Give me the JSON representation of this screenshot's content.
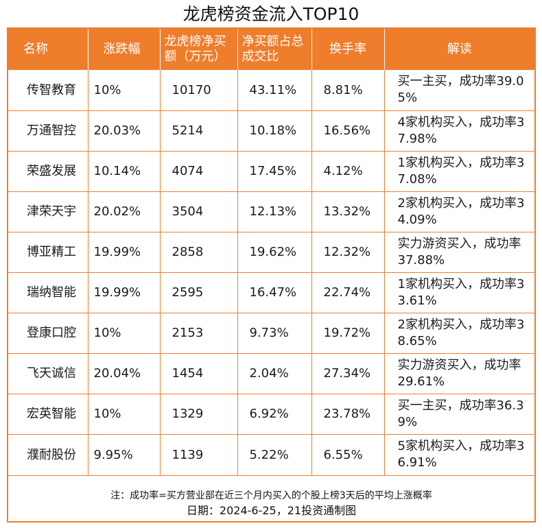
{
  "title": "龙虎榜资金流入TOP10",
  "columns": [
    "名称",
    "涨跌幅",
    "龙虎榜净买额（万元）",
    "净买额占总成交比",
    "换手率",
    "解读"
  ],
  "rows": [
    {
      "name": "传智教育",
      "change": "10%",
      "net_buy": "10170",
      "ratio": "43.11%",
      "turnover": "8.81%",
      "note": "买一主买，成功率39.05%"
    },
    {
      "name": "万通智控",
      "change": "20.03%",
      "net_buy": "5214",
      "ratio": "10.18%",
      "turnover": "16.56%",
      "note": "4家机构买入，成功率37.98%"
    },
    {
      "name": "荣盛发展",
      "change": "10.14%",
      "net_buy": "4074",
      "ratio": "17.45%",
      "turnover": "4.12%",
      "note": "1家机构买入，成功率37.08%"
    },
    {
      "name": "津荣天宇",
      "change": "20.02%",
      "net_buy": "3504",
      "ratio": "12.13%",
      "turnover": "13.32%",
      "note": "2家机构买入，成功率34.09%"
    },
    {
      "name": "博亚精工",
      "change": "19.99%",
      "net_buy": "2858",
      "ratio": "19.62%",
      "turnover": "12.32%",
      "note": "实力游资买入，成功率37.88%"
    },
    {
      "name": "瑞纳智能",
      "change": "19.99%",
      "net_buy": "2595",
      "ratio": "16.47%",
      "turnover": "22.74%",
      "note": "1家机构买入，成功率33.61%"
    },
    {
      "name": "登康口腔",
      "change": "10%",
      "net_buy": "2153",
      "ratio": "9.73%",
      "turnover": "19.72%",
      "note": "2家机构买入，成功率38.65%"
    },
    {
      "name": "飞天诚信",
      "change": "20.04%",
      "net_buy": "1454",
      "ratio": "2.04%",
      "turnover": "27.34%",
      "note": "实力游资买入，成功率29.61%"
    },
    {
      "name": "宏英智能",
      "change": "10%",
      "net_buy": "1329",
      "ratio": "6.92%",
      "turnover": "23.78%",
      "note": "买一主买，成功率36.39%"
    },
    {
      "name": "濮耐股份",
      "change": "9.95%",
      "net_buy": "1139",
      "ratio": "5.22%",
      "turnover": "6.55%",
      "note": "5家机构买入，成功率36.91%"
    }
  ],
  "footnote": "注：成功率=买方营业部在近三个月内买入的个股上榜3天后的平均上涨概率",
  "date_line": "日期：2024-6-25，21投资通制图",
  "colors": {
    "accent": "#ee7d2c",
    "header_text": "#ffffff"
  }
}
